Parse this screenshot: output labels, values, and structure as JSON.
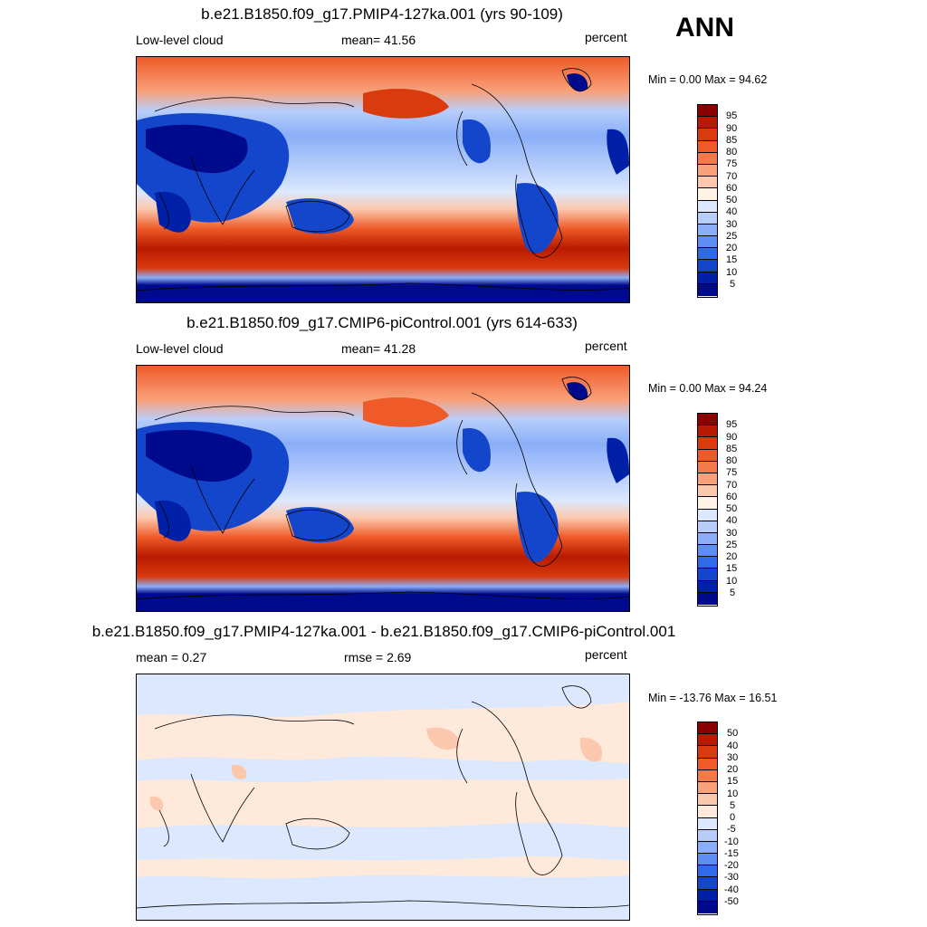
{
  "season": "ANN",
  "panels": [
    {
      "id": "test",
      "title": "b.e21.B1850.f09_g17.PMIP4-127ka.001 (yrs 90-109)",
      "left_label": "Low-level cloud",
      "center_label": "mean=  41.56",
      "right_label": "percent",
      "minmax": "Min =    0.00 Max =  94.62",
      "kind": "absolute",
      "levels": [
        "95",
        "90",
        "85",
        "80",
        "75",
        "70",
        "60",
        "50",
        "40",
        "30",
        "25",
        "20",
        "15",
        "10",
        "5"
      ]
    },
    {
      "id": "control",
      "title": "b.e21.B1850.f09_g17.CMIP6-piControl.001 (yrs 614-633)",
      "left_label": "Low-level cloud",
      "center_label": "mean=  41.28",
      "right_label": "percent",
      "minmax": "Min =    0.00 Max =  94.24",
      "kind": "absolute",
      "levels": [
        "95",
        "90",
        "85",
        "80",
        "75",
        "70",
        "60",
        "50",
        "40",
        "30",
        "25",
        "20",
        "15",
        "10",
        "5"
      ]
    },
    {
      "id": "diff",
      "title": "b.e21.B1850.f09_g17.PMIP4-127ka.001 - b.e21.B1850.f09_g17.CMIP6-piControl.001",
      "left_label": "mean =   0.27",
      "center_label": "rmse =   2.69",
      "right_label": "percent",
      "minmax": "Min = -13.76 Max =  16.51",
      "kind": "difference",
      "levels": [
        "50",
        "40",
        "30",
        "20",
        "15",
        "10",
        "5",
        "0",
        "-5",
        "-10",
        "-15",
        "-20",
        "-30",
        "-40",
        "-50"
      ]
    }
  ],
  "colors": {
    "absolute": [
      "#8b0000",
      "#b81a00",
      "#d93a0e",
      "#ee5a28",
      "#f57a4a",
      "#f9a17a",
      "#fcc8ad",
      "#fff3e6",
      "#dbe8fd",
      "#b7cefb",
      "#8aaef8",
      "#5c8ef4",
      "#2f6ae8",
      "#1446cc",
      "#0020a8",
      "#000a8c"
    ],
    "difference": [
      "#8b0000",
      "#b81a00",
      "#d93a0e",
      "#ee5a28",
      "#f57a4a",
      "#f9a17a",
      "#fcc8ad",
      "#ffe9da",
      "#dbe8fd",
      "#b7cefb",
      "#8aaef8",
      "#5c8ef4",
      "#2f6ae8",
      "#1446cc",
      "#0020a8",
      "#000a8c"
    ]
  }
}
